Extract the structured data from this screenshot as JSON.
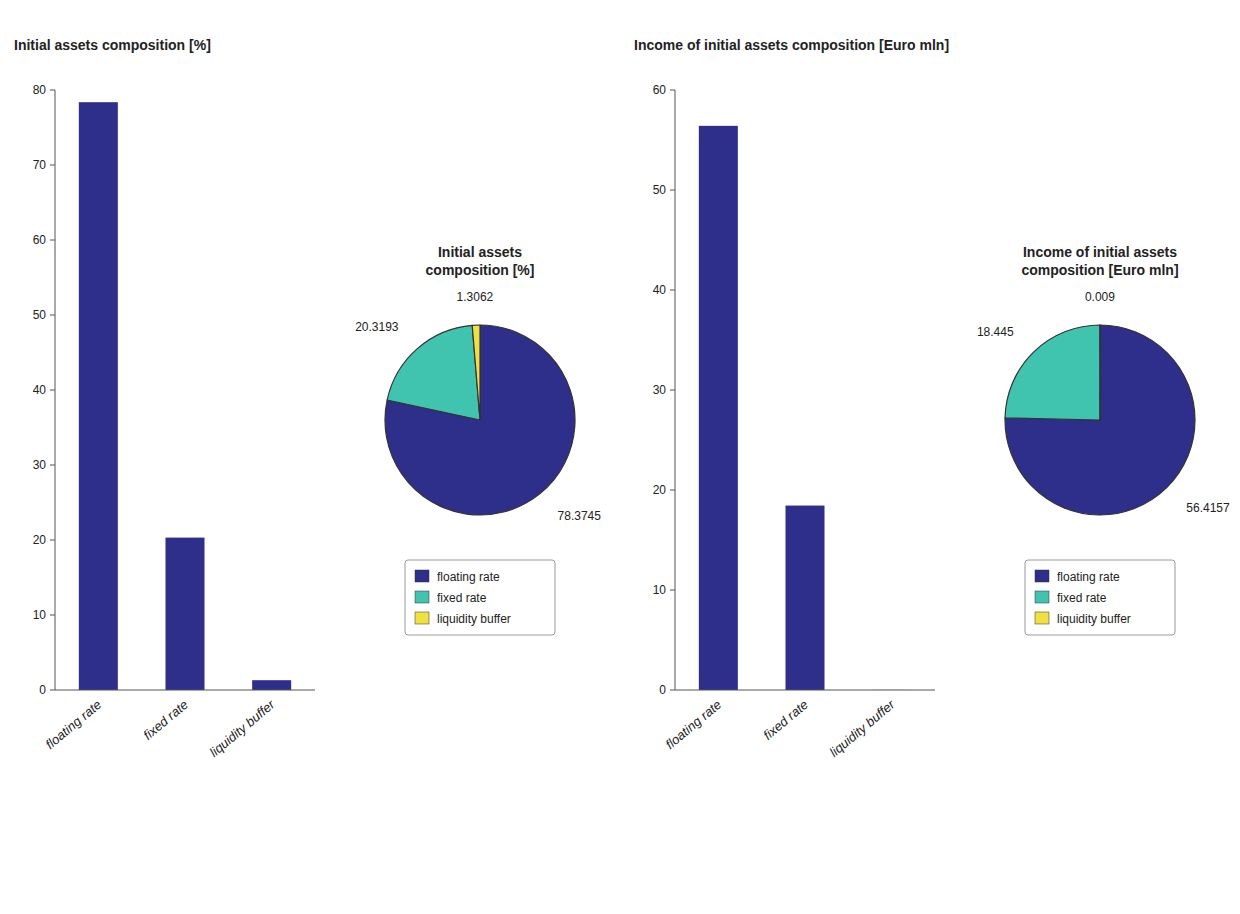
{
  "chart_data": [
    {
      "type": "bar",
      "title": "Initial assets composition [%]",
      "categories": [
        "floating rate",
        "fixed rate",
        "liquidity buffer"
      ],
      "values": [
        78.3745,
        20.3193,
        1.3062
      ],
      "color": "#2E2E8B",
      "ylim": [
        0,
        80
      ],
      "yticks": [
        0,
        10,
        20,
        30,
        40,
        50,
        60,
        70,
        80
      ]
    },
    {
      "type": "pie",
      "title": "Initial assets\ncomposition [%]",
      "categories": [
        "floating rate",
        "fixed rate",
        "liquidity buffer"
      ],
      "values": [
        78.3745,
        20.3193,
        1.3062
      ],
      "colors": [
        "#2E2E8B",
        "#40C4B0",
        "#F0E040"
      ],
      "data_labels": true,
      "legend": "bottom"
    },
    {
      "type": "bar",
      "title": "Income of initial assets composition [Euro mln]",
      "categories": [
        "floating rate",
        "fixed rate",
        "liquidity buffer"
      ],
      "values": [
        56.4157,
        18.445,
        0.009
      ],
      "color": "#2E2E8B",
      "ylim": [
        0,
        60
      ],
      "yticks": [
        0,
        10,
        20,
        30,
        40,
        50,
        60
      ]
    },
    {
      "type": "pie",
      "title": "Income of initial assets\ncomposition [Euro mln]",
      "categories": [
        "floating rate",
        "fixed rate",
        "liquidity buffer"
      ],
      "values": [
        56.4157,
        18.445,
        0.009
      ],
      "colors": [
        "#2E2E8B",
        "#40C4B0",
        "#F0E040"
      ],
      "data_labels": true,
      "legend": "bottom"
    }
  ]
}
